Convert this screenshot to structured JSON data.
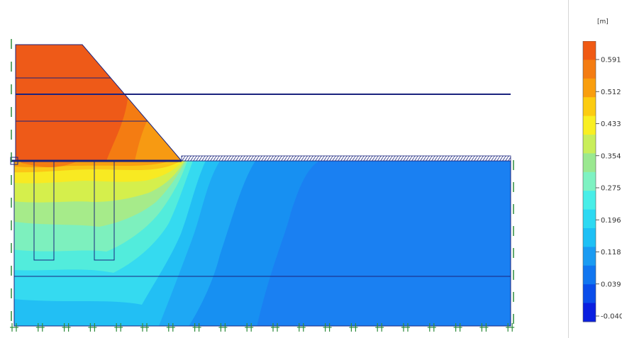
{
  "legend": {
    "unit": "[m]",
    "labels": [
      "0.591",
      "0.512",
      "0.433",
      "0.354",
      "0.275",
      "0.196",
      "0.118",
      "0.039",
      "-0.040"
    ],
    "colors": [
      "#f05a14",
      "#f47c12",
      "#f99e0e",
      "#fccc11",
      "#f9ef22",
      "#c9ee5a",
      "#9ae890",
      "#7ef2c2",
      "#48eee8",
      "#2dd9f2",
      "#1ec0f5",
      "#1a9bf2",
      "#1176f0",
      "#0a4dea",
      "#0a1fe0"
    ]
  },
  "palette": {
    "outline": "#1a237e",
    "support": "#2e8b3c",
    "load_fill": "#ffffff"
  }
}
